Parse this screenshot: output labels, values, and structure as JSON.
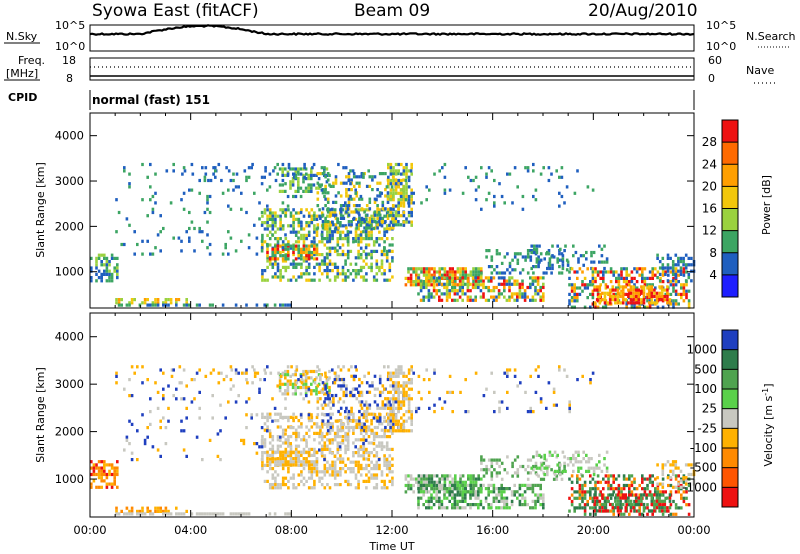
{
  "header": {
    "station": "Syowa East (fitACF)",
    "beam": "Beam 09",
    "date": "20/Aug/2010"
  },
  "status": {
    "nsky_label": "N.Sky",
    "nsky_ticks": [
      "10^5",
      "10^0"
    ],
    "nsearch_label": "N.Search",
    "nsearch_ticks": [
      "10^5",
      "10^0"
    ],
    "freq_label_1": "Freq.",
    "freq_label_2": "[MHz]",
    "freq_ticks": [
      "18",
      "8"
    ],
    "nave_label": "Nave",
    "nave_ticks": [
      "60",
      "0"
    ],
    "cpid_label": "CPID",
    "cpid_value": "normal (fast) 151"
  },
  "chart_data": [
    {
      "type": "heatmap",
      "quantity": "Power",
      "xlabel": "",
      "ylabel": "Slant Range [km]",
      "x_ticks": [
        "00:00",
        "04:00",
        "08:00",
        "12:00",
        "16:00",
        "20:00",
        "00:00"
      ],
      "y_ticks": [
        1000,
        2000,
        3000,
        4000
      ],
      "ylim": [
        200,
        4500
      ],
      "colorbar_label": "Power [dB]",
      "colorbar_ticks": [
        "28",
        "24",
        "20",
        "16",
        "12",
        "8",
        "4"
      ],
      "colorbar_colors": [
        "#ee1111",
        "#ff6a00",
        "#ff9f00",
        "#f2c70b",
        "#9ad23f",
        "#3ca563",
        "#1f5fbf",
        "#1f1fff"
      ]
    },
    {
      "type": "heatmap",
      "quantity": "Velocity",
      "xlabel": "Time UT",
      "ylabel": "Slant Range [km]",
      "x_ticks": [
        "00:00",
        "04:00",
        "08:00",
        "12:00",
        "16:00",
        "20:00",
        "00:00"
      ],
      "y_ticks": [
        1000,
        2000,
        3000,
        4000
      ],
      "ylim": [
        200,
        4500
      ],
      "colorbar_label": "Velocity [m s",
      "colorbar_label_sup": "-1",
      "colorbar_label_end": "]",
      "colorbar_ticks": [
        "1000",
        "500",
        "100",
        "25",
        "-25",
        "-100",
        "-500",
        "-1000"
      ],
      "colorbar_colors": [
        "#1f3fbf",
        "#2e7c4b",
        "#4fa34f",
        "#5ad14a",
        "#c8c8c0",
        "#ffb100",
        "#ff8a00",
        "#ff5500",
        "#ee1111"
      ]
    }
  ]
}
